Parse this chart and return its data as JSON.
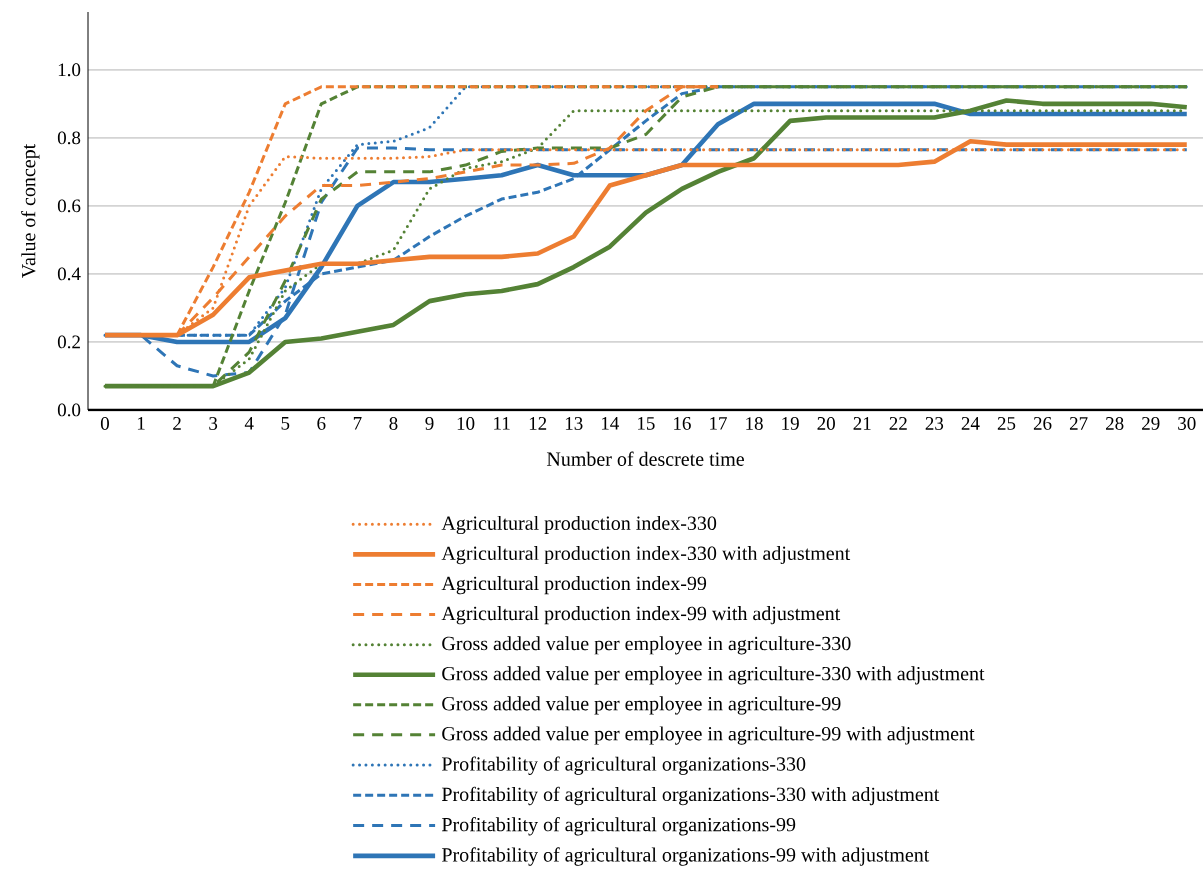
{
  "chart_data": {
    "type": "line",
    "xlabel": "Number of descrete time",
    "ylabel": "Value of concept",
    "categories": [
      "0",
      "1",
      "2",
      "3",
      "4",
      "5",
      "6",
      "7",
      "8",
      "9",
      "10",
      "11",
      "12",
      "13",
      "14",
      "15",
      "16",
      "17",
      "18",
      "19",
      "20",
      "21",
      "22",
      "23",
      "24",
      "25",
      "26",
      "27",
      "28",
      "29",
      "30"
    ],
    "ylim": [
      0,
      1.17
    ],
    "yticks": [
      {
        "value": 0,
        "label": "0.0"
      },
      {
        "value": 0.2,
        "label": "0.2"
      },
      {
        "value": 0.4,
        "label": "0.4"
      },
      {
        "value": 0.6,
        "label": "0.6"
      },
      {
        "value": 0.8,
        "label": "0.8"
      },
      {
        "value": 1.0,
        "label": "1.0"
      }
    ],
    "grid": "y",
    "legend": "bottom",
    "marker": "none",
    "series": [
      {
        "name": "Agricultural production index-330",
        "color": "#ed7d31",
        "line_style": "dotted",
        "values": [
          null,
          null,
          0.22,
          0.3,
          0.6,
          0.745,
          0.74,
          0.74,
          0.74,
          0.745,
          0.765,
          0.765,
          0.765,
          0.765,
          0.765,
          0.765,
          0.765,
          0.765,
          0.765,
          0.765,
          0.765,
          0.765,
          0.765,
          0.765,
          0.765,
          0.765,
          0.765,
          0.765,
          0.765,
          0.765,
          0.765
        ]
      },
      {
        "name": "Agricultural production index-330 with adjustment",
        "color": "#ed7d31",
        "line_style": "solid",
        "values": [
          0.22,
          0.22,
          0.22,
          0.28,
          0.39,
          0.41,
          0.43,
          0.43,
          0.44,
          0.45,
          0.45,
          0.45,
          0.46,
          0.51,
          0.66,
          0.69,
          0.72,
          0.72,
          0.72,
          0.72,
          0.72,
          0.72,
          0.72,
          0.73,
          0.79,
          0.78,
          0.78,
          0.78,
          0.78,
          0.78,
          0.78
        ]
      },
      {
        "name": "Agricultural production index-99",
        "color": "#ed7d31",
        "line_style": "dashed",
        "values": [
          null,
          null,
          0.22,
          0.42,
          0.64,
          0.9,
          0.95,
          0.95,
          0.95,
          0.95,
          0.95,
          0.95,
          0.95,
          0.95,
          0.95,
          0.95,
          0.95,
          0.95,
          null,
          null,
          null,
          null,
          null,
          null,
          null,
          null,
          null,
          null,
          null,
          null,
          null
        ]
      },
      {
        "name": "Agricultural production index-99 with adjustment",
        "color": "#ed7d31",
        "line_style": "dashed",
        "values": [
          null,
          null,
          0.22,
          0.33,
          0.45,
          0.57,
          0.66,
          0.66,
          0.67,
          0.68,
          0.7,
          0.72,
          0.72,
          0.725,
          0.77,
          0.88,
          0.95,
          0.95,
          null,
          null,
          null,
          null,
          null,
          null,
          null,
          null,
          null,
          null,
          null,
          null,
          null
        ]
      },
      {
        "name": "Gross added value per employee in agriculture-330",
        "color": "#548235",
        "line_style": "dotted",
        "values": [
          0.07,
          0.07,
          0.07,
          0.07,
          0.15,
          0.35,
          0.43,
          0.43,
          0.47,
          0.65,
          0.71,
          0.73,
          0.77,
          0.88,
          0.88,
          0.88,
          0.88,
          0.88,
          0.88,
          0.88,
          0.88,
          0.88,
          0.88,
          0.88,
          0.88,
          0.88,
          0.88,
          0.88,
          0.88,
          0.88,
          0.88
        ]
      },
      {
        "name": "Gross added value per employee in agriculture-330 with adjustment",
        "color": "#548235",
        "line_style": "solid",
        "values": [
          0.07,
          0.07,
          0.07,
          0.07,
          0.11,
          0.2,
          0.21,
          0.23,
          0.25,
          0.32,
          0.34,
          0.35,
          0.37,
          0.42,
          0.48,
          0.58,
          0.65,
          0.7,
          0.74,
          0.85,
          0.86,
          0.86,
          0.86,
          0.86,
          0.88,
          0.91,
          0.9,
          0.9,
          0.9,
          0.9,
          0.89
        ]
      },
      {
        "name": "Gross added value per employee in agriculture-99",
        "color": "#548235",
        "line_style": "dashed",
        "values": [
          0.07,
          0.07,
          0.07,
          0.07,
          0.35,
          0.61,
          0.9,
          0.95,
          0.95,
          0.95,
          0.95,
          0.95,
          0.95,
          0.95,
          0.95,
          0.95,
          0.95,
          0.95,
          0.95,
          0.95,
          0.95,
          0.95,
          0.95,
          0.95,
          0.95,
          0.95,
          0.95,
          0.95,
          0.95,
          0.95,
          0.95
        ]
      },
      {
        "name": "Gross added value per employee in agriculture-99 with adjustment",
        "color": "#548235",
        "line_style": "dashed",
        "values": [
          0.07,
          0.07,
          0.07,
          0.07,
          0.17,
          0.38,
          0.62,
          0.7,
          0.7,
          0.7,
          0.72,
          0.76,
          0.77,
          0.77,
          0.77,
          0.81,
          0.92,
          0.95,
          0.95,
          0.95,
          0.95,
          0.95,
          0.95,
          0.95,
          0.95,
          0.95,
          0.95,
          0.95,
          0.95,
          0.95,
          0.95
        ]
      },
      {
        "name": "Profitability of agricultural organizations-330",
        "color": "#2e75b6",
        "line_style": "dotted",
        "values": [
          0.22,
          0.22,
          0.22,
          0.22,
          0.22,
          0.36,
          0.65,
          0.78,
          0.79,
          0.83,
          0.95,
          0.95,
          0.95,
          0.95,
          0.95,
          0.95,
          0.95,
          0.95,
          0.95,
          0.95,
          0.95,
          0.95,
          0.95,
          0.95,
          0.95,
          0.95,
          0.95,
          0.95,
          0.95,
          0.95,
          0.95
        ]
      },
      {
        "name": "Profitability of agricultural organizations-330 with adjustment",
        "color": "#2e75b6",
        "line_style": "dashed",
        "values": [
          0.22,
          0.22,
          0.22,
          0.22,
          0.22,
          0.32,
          0.4,
          0.42,
          0.44,
          0.51,
          0.57,
          0.62,
          0.64,
          0.68,
          0.765,
          0.85,
          0.93,
          0.95,
          0.95,
          0.95,
          0.95,
          0.95,
          0.95,
          0.95,
          0.95,
          0.95,
          0.95,
          0.95,
          0.95,
          0.95,
          0.95
        ]
      },
      {
        "name": "Profitability of agricultural organizations-99",
        "color": "#2e75b6",
        "line_style": "dashed",
        "values": [
          0.22,
          0.22,
          0.13,
          0.1,
          0.11,
          0.28,
          0.61,
          0.77,
          0.77,
          0.765,
          0.765,
          0.765,
          0.765,
          0.765,
          0.765,
          0.765,
          0.765,
          0.765,
          0.765,
          0.765,
          0.765,
          0.765,
          0.765,
          0.765,
          0.765,
          0.765,
          0.765,
          0.765,
          0.765,
          0.765,
          0.765
        ]
      },
      {
        "name": "Profitability of agricultural organizations-99 with adjustment",
        "color": "#2e75b6",
        "line_style": "solid",
        "values": [
          0.22,
          0.22,
          0.2,
          0.2,
          0.2,
          0.27,
          0.42,
          0.6,
          0.67,
          0.67,
          0.68,
          0.69,
          0.72,
          0.69,
          0.69,
          0.69,
          0.72,
          0.84,
          0.9,
          0.9,
          0.9,
          0.9,
          0.9,
          0.9,
          0.87,
          0.87,
          0.87,
          0.87,
          0.87,
          0.87,
          0.87
        ]
      }
    ]
  }
}
